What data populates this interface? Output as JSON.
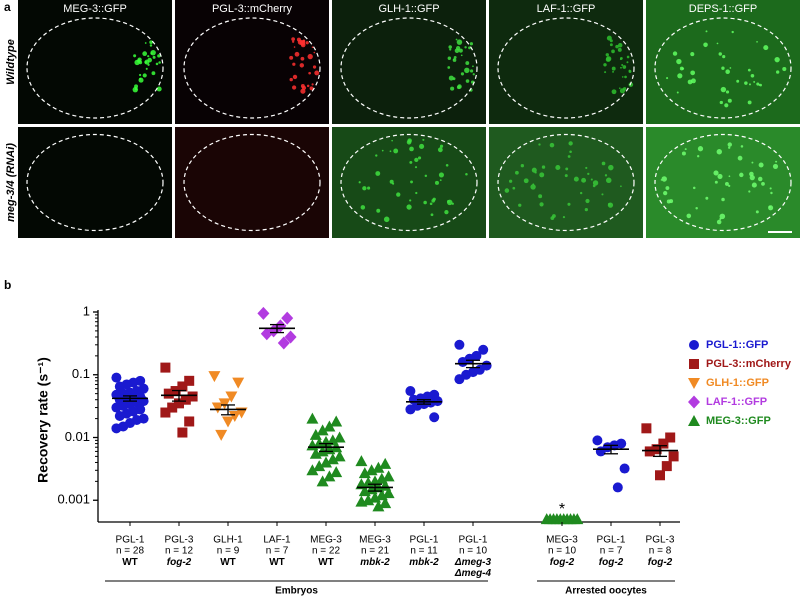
{
  "panel_a": {
    "label": "a",
    "columns": [
      "MEG-3::GFP",
      "PGL-3::mCherry",
      "GLH-1::GFP",
      "LAF-1::GFP",
      "DEPS-1::GFP"
    ],
    "rows": [
      "Wildtype",
      "meg-3/4 (RNAi)"
    ]
  },
  "chart_data": {
    "type": "scatter",
    "panel_label": "b",
    "y_label": "Recovery rate (s⁻¹)",
    "log": true,
    "ylim": [
      0.00045,
      1
    ],
    "yticks": [
      0.001,
      0.01,
      0.1,
      1
    ],
    "series": [
      {
        "name": "PGL-1::GFP",
        "color": "#1a1ad0",
        "marker": "circle"
      },
      {
        "name": "PGL-3::mCherry",
        "color": "#a01818",
        "marker": "square"
      },
      {
        "name": "GLH-1::GFP",
        "color": "#f08a24",
        "marker": "triangle-down"
      },
      {
        "name": "LAF-1::GFP",
        "color": "#b23be0",
        "marker": "diamond"
      },
      {
        "name": "MEG-3::GFP",
        "color": "#1f8a1f",
        "marker": "triangle-up"
      }
    ],
    "sections": [
      {
        "label": "Embryos",
        "groups": [
          {
            "category": "PGL-1",
            "n": "n = 28",
            "condition": "WT",
            "italic": false,
            "series": 0,
            "mean": 0.042,
            "sem": 0.004,
            "values": [
              0.09,
              0.08,
              0.075,
              0.07,
              0.065,
              0.06,
              0.055,
              0.052,
              0.05,
              0.048,
              0.045,
              0.043,
              0.042,
              0.04,
              0.038,
              0.036,
              0.034,
              0.032,
              0.03,
              0.028,
              0.026,
              0.024,
              0.022,
              0.02,
              0.019,
              0.017,
              0.015,
              0.014
            ]
          },
          {
            "category": "PGL-3",
            "n": "n = 12",
            "condition": "fog-2",
            "italic": true,
            "series": 1,
            "mean": 0.047,
            "sem": 0.009,
            "values": [
              0.13,
              0.08,
              0.065,
              0.055,
              0.05,
              0.045,
              0.04,
              0.035,
              0.03,
              0.025,
              0.018,
              0.012
            ]
          },
          {
            "category": "GLH-1",
            "n": "n = 9",
            "condition": "WT",
            "italic": false,
            "series": 2,
            "mean": 0.028,
            "sem": 0.005,
            "values": [
              0.095,
              0.075,
              0.045,
              0.035,
              0.03,
              0.025,
              0.022,
              0.018,
              0.011
            ]
          },
          {
            "category": "LAF-1",
            "n": "n = 7",
            "condition": "WT",
            "italic": false,
            "series": 3,
            "mean": 0.55,
            "sem": 0.08,
            "values": [
              0.95,
              0.8,
              0.6,
              0.5,
              0.45,
              0.4,
              0.32
            ]
          },
          {
            "category": "MEG-3",
            "n": "n = 22",
            "condition": "WT",
            "italic": false,
            "series": 4,
            "mean": 0.007,
            "sem": 0.001,
            "values": [
              0.02,
              0.018,
              0.015,
              0.013,
              0.011,
              0.01,
              0.009,
              0.0085,
              0.008,
              0.0075,
              0.007,
              0.0065,
              0.006,
              0.0055,
              0.005,
              0.0045,
              0.004,
              0.0035,
              0.003,
              0.0028,
              0.0024,
              0.002
            ]
          },
          {
            "category": "MEG-3",
            "n": "n = 21",
            "condition": "mbk-2",
            "italic": true,
            "series": 4,
            "mean": 0.0016,
            "sem": 0.0002,
            "values": [
              0.0042,
              0.0038,
              0.0033,
              0.003,
              0.0027,
              0.0024,
              0.0022,
              0.002,
              0.0019,
              0.0018,
              0.0017,
              0.0016,
              0.0015,
              0.0014,
              0.0013,
              0.0012,
              0.0011,
              0.001,
              0.00095,
              0.0009,
              0.0008
            ]
          },
          {
            "category": "PGL-1",
            "n": "n = 11",
            "condition": "mbk-2",
            "italic": true,
            "series": 0,
            "mean": 0.037,
            "sem": 0.003,
            "values": [
              0.055,
              0.048,
              0.045,
              0.042,
              0.04,
              0.038,
              0.036,
              0.034,
              0.032,
              0.028,
              0.021
            ]
          },
          {
            "category": "PGL-1",
            "n": "n = 10",
            "condition": "Δmeg-3 Δmeg-4",
            "italic": true,
            "series": 0,
            "mean": 0.15,
            "sem": 0.02,
            "values": [
              0.3,
              0.25,
              0.2,
              0.18,
              0.16,
              0.14,
              0.12,
              0.11,
              0.1,
              0.085
            ]
          }
        ]
      },
      {
        "label": "Arrested oocytes",
        "groups": [
          {
            "category": "MEG-3",
            "n": "n = 10",
            "condition": "fog-2",
            "italic": true,
            "series": 4,
            "annotation": "*",
            "values": [
              0.0005,
              0.0005,
              0.0005,
              0.0005,
              0.0005,
              0.0005,
              0.0005,
              0.0005,
              0.0005,
              0.0005
            ]
          },
          {
            "category": "PGL-1",
            "n": "n = 7",
            "condition": "fog-2",
            "italic": true,
            "series": 0,
            "mean": 0.0065,
            "sem": 0.001,
            "values": [
              0.009,
              0.008,
              0.0075,
              0.007,
              0.006,
              0.0032,
              0.0016
            ]
          },
          {
            "category": "PGL-3",
            "n": "n = 8",
            "condition": "fog-2",
            "italic": true,
            "series": 1,
            "mean": 0.0062,
            "sem": 0.0012,
            "values": [
              0.014,
              0.01,
              0.008,
              0.0065,
              0.006,
              0.005,
              0.0035,
              0.0025
            ]
          }
        ]
      }
    ]
  }
}
